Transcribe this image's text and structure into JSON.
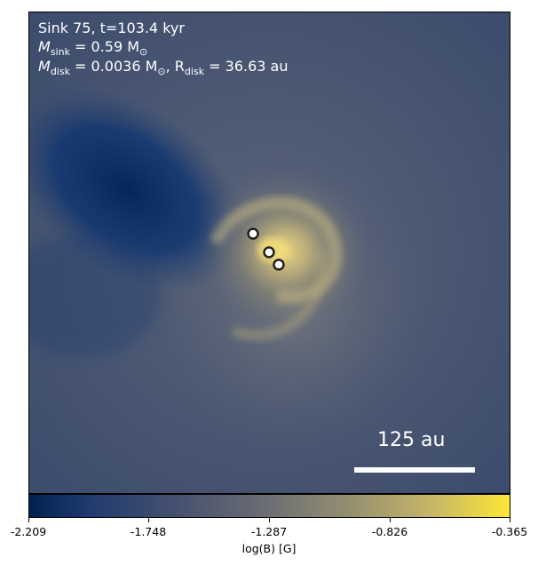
{
  "annotation": {
    "line1": "Sink 75, t=103.4 kyr",
    "msink_symbol": "M",
    "msink_sub": "sink",
    "msink_value": " = 0.59 M",
    "msink_unit_sub": "⊙",
    "mdisk_symbol": "M",
    "mdisk_sub": "disk",
    "mdisk_value": " = 0.0036 M",
    "mdisk_unit_sub": "⊙",
    "rdisk_symbol": ", R",
    "rdisk_sub": "disk",
    "rdisk_value": " = 36.63 au"
  },
  "scale_bar": {
    "label": "125 au"
  },
  "colorbar": {
    "ticks": [
      "-2.209",
      "-1.748",
      "-1.287",
      "-0.826",
      "-0.365"
    ],
    "label": "log(B) [G]",
    "colors": [
      "#00224e",
      "#44506f",
      "#6d6e73",
      "#989270",
      "#fde737"
    ]
  }
}
